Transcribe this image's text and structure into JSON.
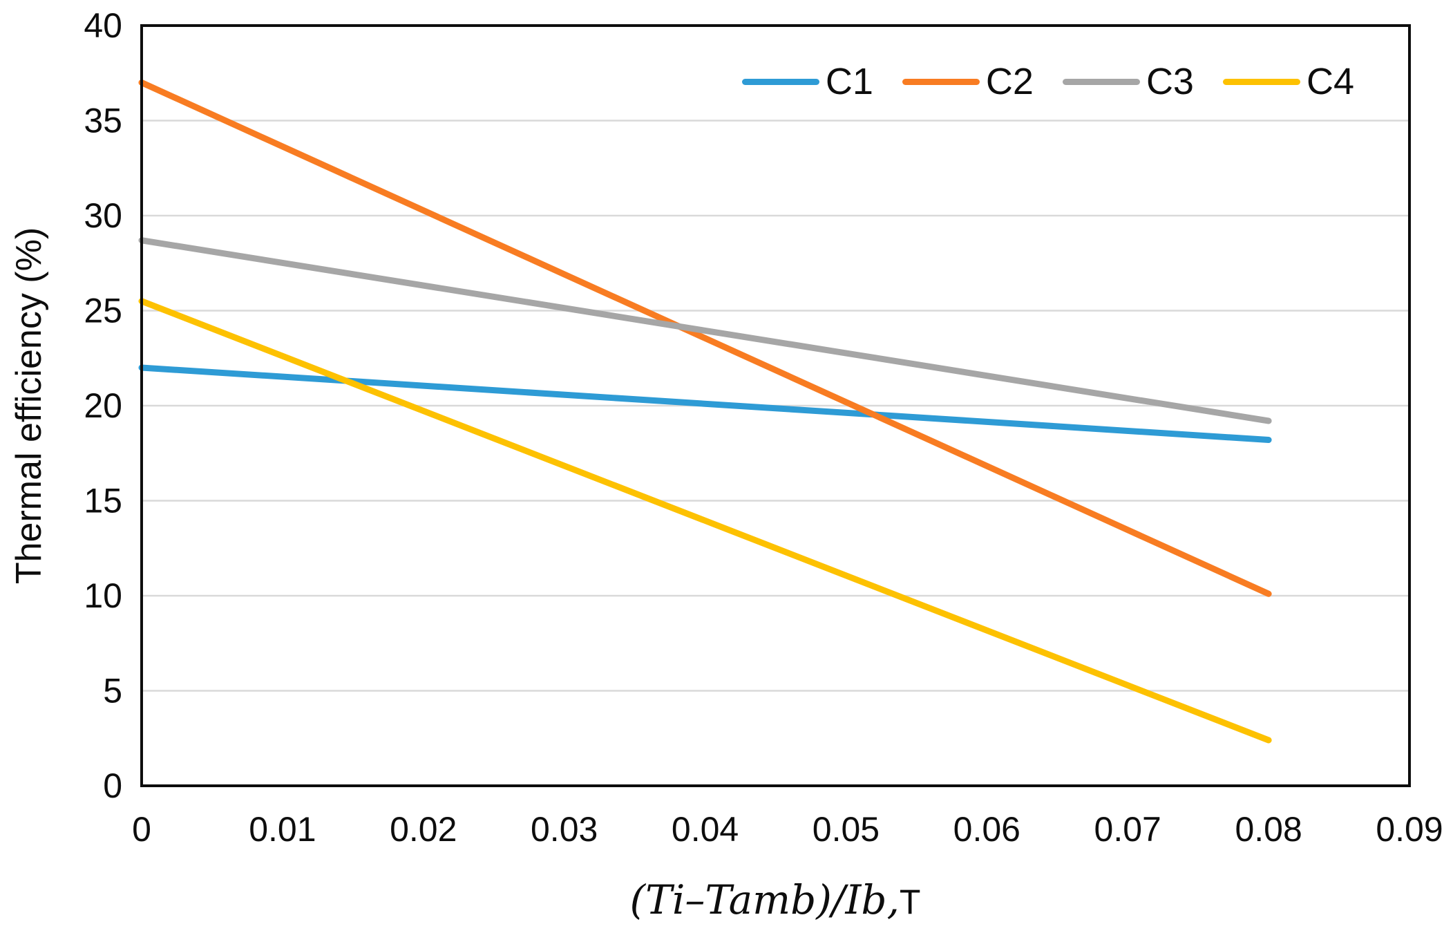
{
  "chart_data": {
    "type": "line",
    "title": "",
    "ylabel": "Thermal efficiency (%)",
    "xlabel_math": "(Ti–Tamb)/Ib,",
    "xlabel_suffix": "T",
    "xlim": [
      0,
      0.09
    ],
    "ylim": [
      0,
      40
    ],
    "x_tick_values": [
      0,
      0.01,
      0.02,
      0.03,
      0.04,
      0.05,
      0.06,
      0.07,
      0.08,
      0.09
    ],
    "x_tick_labels": [
      "0",
      "0.01",
      "0.02",
      "0.03",
      "0.04",
      "0.05",
      "0.06",
      "0.07",
      "0.08",
      "0.09"
    ],
    "y_tick_values": [
      0,
      5,
      10,
      15,
      20,
      25,
      30,
      35,
      40
    ],
    "y_tick_labels": [
      "0",
      "5",
      "10",
      "15",
      "20",
      "25",
      "30",
      "35",
      "40"
    ],
    "grid": "horizontal",
    "legend_position": "top-right-inside",
    "x": [
      0,
      0.08
    ],
    "series": [
      {
        "name": "C1",
        "color": "#2E9BD5",
        "values": [
          22.0,
          18.2
        ]
      },
      {
        "name": "C2",
        "color": "#F87C22",
        "values": [
          37.0,
          10.1
        ]
      },
      {
        "name": "C3",
        "color": "#A6A6A6",
        "values": [
          28.7,
          19.2
        ]
      },
      {
        "name": "C4",
        "color": "#FDC101",
        "values": [
          25.5,
          2.4
        ]
      }
    ],
    "colors": {
      "axis_border": "#0d0d0d",
      "gridline": "#D9D9D9",
      "background": "#FFFFFF",
      "tick_text": "#0d0d0d"
    },
    "line_width": 9
  },
  "layout_note": "plot of thermal efficiency vs reduced temperature for four collectors C1-C4"
}
